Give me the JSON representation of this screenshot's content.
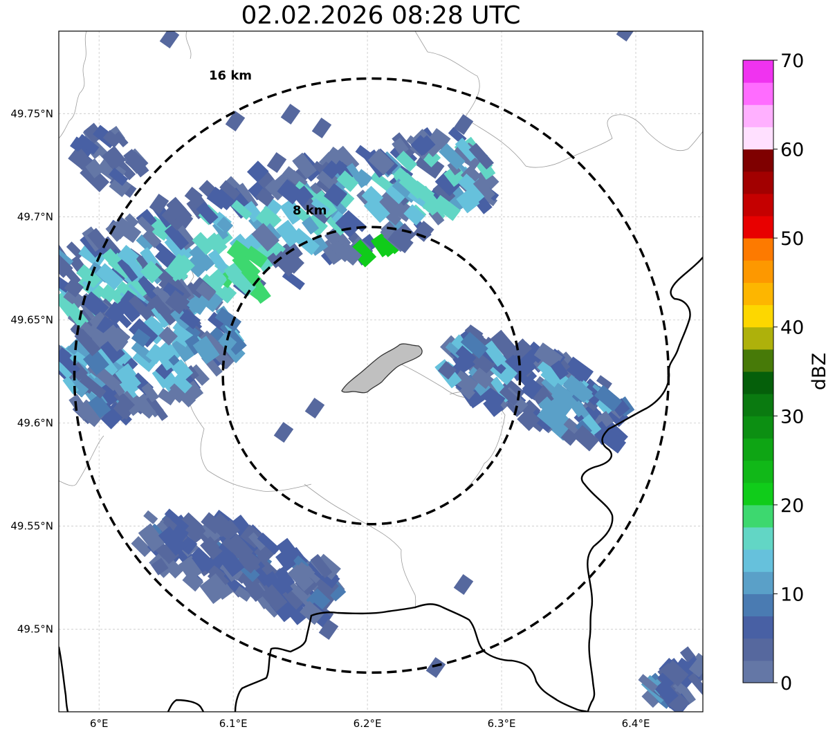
{
  "title": "02.02.2026 08:28 UTC",
  "map": {
    "lon_range": [
      5.97,
      6.45
    ],
    "lat_range": [
      49.46,
      49.79
    ],
    "lon_ticks": [
      {
        "value": 6.0,
        "label": "6°E"
      },
      {
        "value": 6.1,
        "label": "6.1°E"
      },
      {
        "value": 6.2,
        "label": "6.2°E"
      },
      {
        "value": 6.3,
        "label": "6.3°E"
      },
      {
        "value": 6.4,
        "label": "6.4°E"
      }
    ],
    "lat_ticks": [
      {
        "value": 49.75,
        "label": "49.75°N"
      },
      {
        "value": 49.7,
        "label": "49.7°N"
      },
      {
        "value": 49.65,
        "label": "49.65°N"
      },
      {
        "value": 49.6,
        "label": "49.6°N"
      },
      {
        "value": 49.55,
        "label": "49.55°N"
      },
      {
        "value": 49.5,
        "label": "49.5°N"
      }
    ],
    "gridlines": true,
    "radar_center": {
      "lon": 6.203,
      "lat": 49.623
    },
    "range_rings": [
      {
        "radius_km": 8,
        "label": "8 km"
      },
      {
        "radius_km": 16,
        "label": "16 km"
      }
    ]
  },
  "colorbar": {
    "unit": "dBZ",
    "min": 0,
    "max": 70,
    "step": 2.5,
    "tick_labels": [
      "0",
      "10",
      "20",
      "30",
      "40",
      "50",
      "60",
      "70"
    ],
    "tick_values": [
      0,
      10,
      20,
      30,
      40,
      50,
      60,
      70
    ],
    "colors": [
      "#6477a6",
      "#56689e",
      "#4860a4",
      "#4a7bb2",
      "#5aa0c8",
      "#66c1dc",
      "#62d6c5",
      "#3dd86f",
      "#10cc1a",
      "#11b818",
      "#0ea514",
      "#0c8f12",
      "#0a7a10",
      "#055f0a",
      "#477a08",
      "#aeb10b",
      "#fdd700",
      "#fdb600",
      "#fd9800",
      "#fd7a00",
      "#e80000",
      "#c50000",
      "#a20000",
      "#7f0000",
      "#ffe0ff",
      "#ffb0ff",
      "#ff6cff",
      "#f033f0"
    ]
  },
  "precip_colors": {
    "level_0": "#6477a6",
    "level_1": "#56689e",
    "level_2": "#4860a4",
    "level_3": "#4a7bb2",
    "level_4": "#5aa0c8",
    "level_5": "#66c1dc",
    "level_6": "#62d6c5",
    "level_7": "#3dd86f",
    "level_8": "#10cc1a"
  },
  "city_fill": "#c0c0c0"
}
